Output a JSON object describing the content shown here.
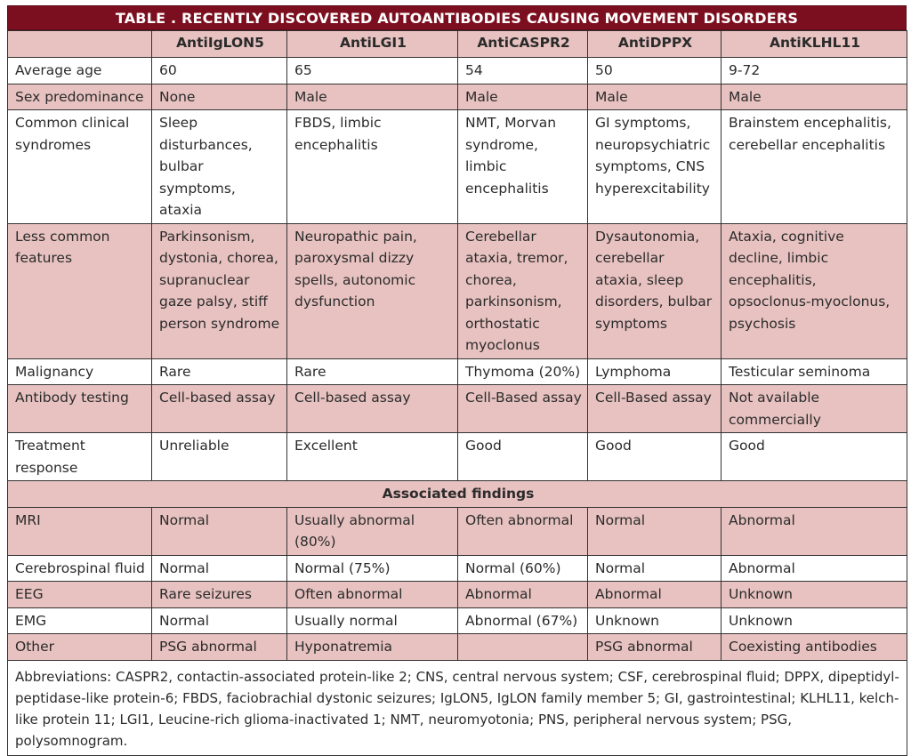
{
  "title": "TABLE . RECENTLY DISCOVERED AUTOANTIBODIES CAUSING MOVEMENT DISORDERS",
  "headers": [
    "",
    "AntiIgLON5",
    "AntiLGI1",
    "AntiCASPR2",
    "AntiDPPX",
    "AntiKLHL11"
  ],
  "rows": [
    {
      "label": "Average age",
      "cells": [
        "60",
        "65",
        "54",
        "50",
        "9-72"
      ]
    },
    {
      "label": "Sex predominance",
      "cells": [
        "None",
        "Male",
        "Male",
        "Male",
        "Male"
      ]
    },
    {
      "label": "Common clinical syndromes",
      "cells": [
        "Sleep disturbances, bulbar symptoms, ataxia",
        "FBDS, limbic encephalitis",
        "NMT, Morvan syndrome, limbic encephalitis",
        "GI symptoms, neuropsychiatric symptoms, CNS hyperexcitability",
        "Brainstem encephalitis, cerebellar encephalitis"
      ]
    },
    {
      "label": "Less common features",
      "cells": [
        "Parkinsonism, dystonia, chorea, supranuclear gaze palsy, stiff person syndrome",
        "Neuropathic pain, paroxysmal dizzy spells, autonomic dysfunction",
        "Cerebellar ataxia, tremor, chorea, parkinsonism, orthostatic myoclonus",
        "Dysautonomia, cerebellar ataxia, sleep disorders, bulbar symptoms",
        "Ataxia, cognitive decline, limbic encephalitis, opsoclonus-myoclonus, psychosis"
      ]
    },
    {
      "label": "Malignancy",
      "cells": [
        "Rare",
        "Rare",
        "Thymoma (20%)",
        "Lymphoma",
        "Testicular seminoma"
      ]
    },
    {
      "label": "Antibody testing",
      "cells": [
        "Cell-based assay",
        "Cell-based assay",
        "Cell-Based assay",
        "Cell-Based assay",
        "Not available commercially"
      ]
    },
    {
      "label": "Treatment response",
      "cells": [
        "Unreliable",
        "Excellent",
        "Good",
        "Good",
        "Good"
      ]
    }
  ],
  "section_title": "Associated findings",
  "findings_rows": [
    {
      "label": "MRI",
      "cells": [
        "Normal",
        "Usually abnormal (80%)",
        "Often abnormal",
        "Normal",
        "Abnormal"
      ]
    },
    {
      "label": "Cerebrospinal fluid",
      "cells": [
        "Normal",
        "Normal (75%)",
        "Normal (60%)",
        "Normal",
        "Abnormal"
      ]
    },
    {
      "label": "EEG",
      "cells": [
        "Rare seizures",
        "Often abnormal",
        "Abnormal",
        "Abnormal",
        "Unknown"
      ]
    },
    {
      "label": "EMG",
      "cells": [
        "Normal",
        "Usually normal",
        "Abnormal (67%)",
        "Unknown",
        "Unknown"
      ]
    },
    {
      "label": "Other",
      "cells": [
        "PSG abnormal",
        "Hyponatremia",
        "",
        "PSG abnormal",
        "Coexisting antibodies"
      ]
    }
  ],
  "abbreviations": "Abbreviations: CASPR2, contactin-associated protein-like 2; CNS, central nervous system; CSF, cerebrospinal fluid; DPPX, dipeptidyl-peptidase-like protein-6; FBDS, faciobrachial dystonic seizures; IgLON5, IgLON family member 5; GI, gastrointestinal; KLHL11, kelch-like protein 11; LGI1, Leucine-rich glioma-inactivated 1; NMT, neuromyotonia; PNS, peripheral nervous system; PSG, polysomnogram.",
  "colors": {
    "title_bg": "#7c0f1f",
    "pink_row": "#e7c2c0",
    "white_row": "#ffffff",
    "border": "#333333"
  }
}
